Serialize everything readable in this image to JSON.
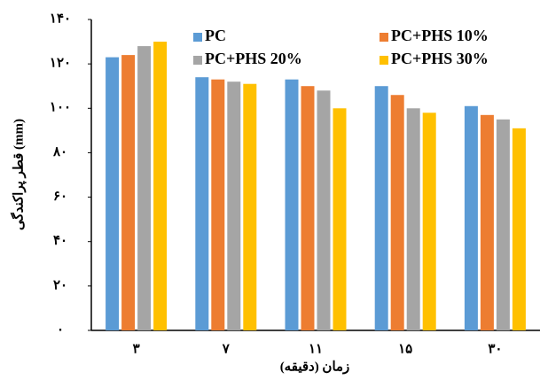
{
  "chart_data": {
    "type": "bar",
    "y_label": "قطر پراکندگی (mm)",
    "x_label": "زمان (دقیقه)",
    "categories": [
      "۳",
      "۷",
      "۱۱",
      "۱۵",
      "۳۰"
    ],
    "series": [
      {
        "name": "PC",
        "color": "#5b9bd5",
        "values": [
          123,
          114,
          113,
          110,
          101
        ]
      },
      {
        "name": "PC+PHS 10%",
        "color": "#ed7d31",
        "values": [
          124,
          113,
          110,
          106,
          97
        ]
      },
      {
        "name": "PC+PHS 20%",
        "color": "#a5a5a5",
        "values": [
          128,
          112,
          108,
          100,
          95
        ]
      },
      {
        "name": "PC+PHS 30%",
        "color": "#ffc000",
        "values": [
          130,
          111,
          100,
          98,
          91
        ]
      }
    ],
    "ylim": [
      0,
      140
    ],
    "yticks": [
      {
        "value": 0,
        "label": "۰"
      },
      {
        "value": 20,
        "label": "۲۰"
      },
      {
        "value": 40,
        "label": "۴۰"
      },
      {
        "value": 60,
        "label": "۶۰"
      },
      {
        "value": 80,
        "label": "۸۰"
      },
      {
        "value": 100,
        "label": "۱۰۰"
      },
      {
        "value": 120,
        "label": "۱۲۰"
      },
      {
        "value": 140,
        "label": "۱۴۰"
      }
    ]
  }
}
